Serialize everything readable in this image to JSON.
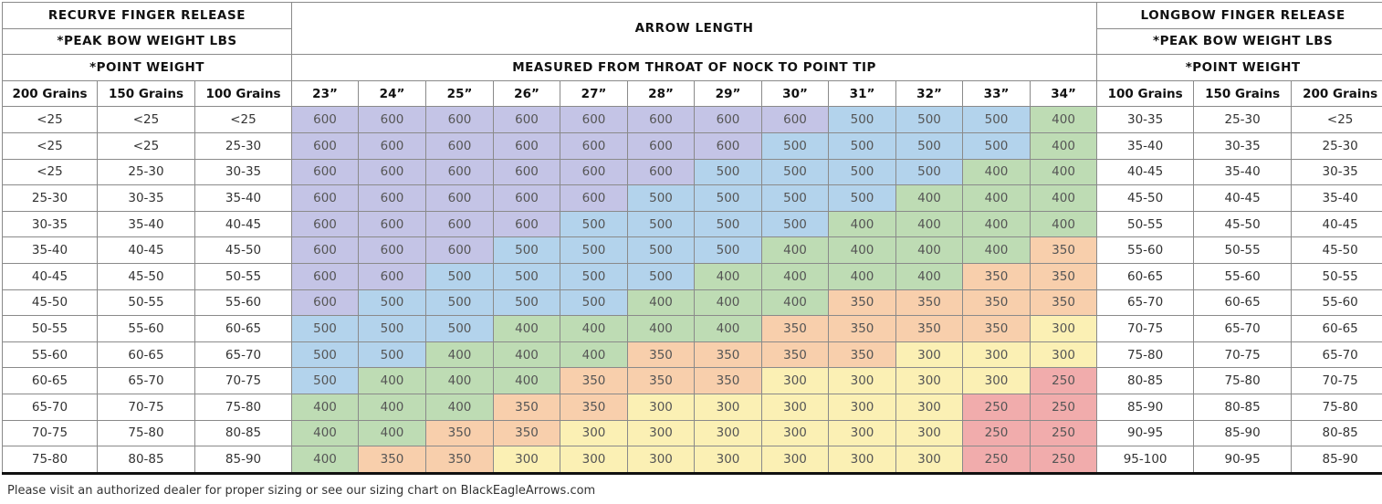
{
  "colors": {
    "600": "#c4c4e6",
    "500": "#b3d3ec",
    "400": "#bedcb4",
    "350": "#f8cfac",
    "300": "#fbf0b4",
    "250": "#f1acac"
  },
  "header": {
    "left_title": "RECURVE FINGER RELEASE",
    "left_peak": "*PEAK BOW WEIGHT LBS",
    "left_point": "*POINT WEIGHT",
    "center_title": "ARROW LENGTH",
    "center_measure": "MEASURED FROM THROAT OF NOCK TO POINT TIP",
    "right_title": "LONGBOW FINGER RELEASE",
    "right_peak": "*PEAK BOW WEIGHT LBS",
    "right_point": "*POINT WEIGHT"
  },
  "left_columns": [
    "200 Grains",
    "150 Grains",
    "100 Grains"
  ],
  "lengths": [
    "23”",
    "24”",
    "25”",
    "26”",
    "27”",
    "28”",
    "29”",
    "30”",
    "31”",
    "32”",
    "33”",
    "34”"
  ],
  "right_columns": [
    "100 Grains",
    "150 Grains",
    "200 Grains"
  ],
  "rows": [
    {
      "recurve": [
        "<25",
        "<25",
        "<25"
      ],
      "spine": [
        "600",
        "600",
        "600",
        "600",
        "600",
        "600",
        "600",
        "600",
        "500",
        "500",
        "500",
        "400"
      ],
      "longbow": [
        "30-35",
        "25-30",
        "<25"
      ]
    },
    {
      "recurve": [
        "<25",
        "<25",
        "25-30"
      ],
      "spine": [
        "600",
        "600",
        "600",
        "600",
        "600",
        "600",
        "600",
        "500",
        "500",
        "500",
        "500",
        "400"
      ],
      "longbow": [
        "35-40",
        "30-35",
        "25-30"
      ]
    },
    {
      "recurve": [
        "<25",
        "25-30",
        "30-35"
      ],
      "spine": [
        "600",
        "600",
        "600",
        "600",
        "600",
        "600",
        "500",
        "500",
        "500",
        "500",
        "400",
        "400"
      ],
      "longbow": [
        "40-45",
        "35-40",
        "30-35"
      ]
    },
    {
      "recurve": [
        "25-30",
        "30-35",
        "35-40"
      ],
      "spine": [
        "600",
        "600",
        "600",
        "600",
        "600",
        "500",
        "500",
        "500",
        "500",
        "400",
        "400",
        "400"
      ],
      "longbow": [
        "45-50",
        "40-45",
        "35-40"
      ]
    },
    {
      "recurve": [
        "30-35",
        "35-40",
        "40-45"
      ],
      "spine": [
        "600",
        "600",
        "600",
        "600",
        "500",
        "500",
        "500",
        "500",
        "400",
        "400",
        "400",
        "400"
      ],
      "longbow": [
        "50-55",
        "45-50",
        "40-45"
      ]
    },
    {
      "recurve": [
        "35-40",
        "40-45",
        "45-50"
      ],
      "spine": [
        "600",
        "600",
        "600",
        "500",
        "500",
        "500",
        "500",
        "400",
        "400",
        "400",
        "400",
        "350"
      ],
      "longbow": [
        "55-60",
        "50-55",
        "45-50"
      ]
    },
    {
      "recurve": [
        "40-45",
        "45-50",
        "50-55"
      ],
      "spine": [
        "600",
        "600",
        "500",
        "500",
        "500",
        "500",
        "400",
        "400",
        "400",
        "400",
        "350",
        "350"
      ],
      "longbow": [
        "60-65",
        "55-60",
        "50-55"
      ]
    },
    {
      "recurve": [
        "45-50",
        "50-55",
        "55-60"
      ],
      "spine": [
        "600",
        "500",
        "500",
        "500",
        "500",
        "400",
        "400",
        "400",
        "350",
        "350",
        "350",
        "350"
      ],
      "longbow": [
        "65-70",
        "60-65",
        "55-60"
      ]
    },
    {
      "recurve": [
        "50-55",
        "55-60",
        "60-65"
      ],
      "spine": [
        "500",
        "500",
        "500",
        "400",
        "400",
        "400",
        "400",
        "350",
        "350",
        "350",
        "350",
        "300"
      ],
      "longbow": [
        "70-75",
        "65-70",
        "60-65"
      ]
    },
    {
      "recurve": [
        "55-60",
        "60-65",
        "65-70"
      ],
      "spine": [
        "500",
        "500",
        "400",
        "400",
        "400",
        "350",
        "350",
        "350",
        "350",
        "300",
        "300",
        "300"
      ],
      "longbow": [
        "75-80",
        "70-75",
        "65-70"
      ]
    },
    {
      "recurve": [
        "60-65",
        "65-70",
        "70-75"
      ],
      "spine": [
        "500",
        "400",
        "400",
        "400",
        "350",
        "350",
        "350",
        "300",
        "300",
        "300",
        "300",
        "250"
      ],
      "longbow": [
        "80-85",
        "75-80",
        "70-75"
      ]
    },
    {
      "recurve": [
        "65-70",
        "70-75",
        "75-80"
      ],
      "spine": [
        "400",
        "400",
        "400",
        "350",
        "350",
        "300",
        "300",
        "300",
        "300",
        "300",
        "250",
        "250"
      ],
      "longbow": [
        "85-90",
        "80-85",
        "75-80"
      ]
    },
    {
      "recurve": [
        "70-75",
        "75-80",
        "80-85"
      ],
      "spine": [
        "400",
        "400",
        "350",
        "350",
        "300",
        "300",
        "300",
        "300",
        "300",
        "300",
        "250",
        "250"
      ],
      "longbow": [
        "90-95",
        "85-90",
        "80-85"
      ]
    },
    {
      "recurve": [
        "75-80",
        "80-85",
        "85-90"
      ],
      "spine": [
        "400",
        "350",
        "350",
        "300",
        "300",
        "300",
        "300",
        "300",
        "300",
        "300",
        "250",
        "250"
      ],
      "longbow": [
        "95-100",
        "90-95",
        "85-90"
      ]
    }
  ],
  "footer_note": "Please visit an authorized dealer for proper sizing or see our sizing chart on BlackEagleArrows.com"
}
